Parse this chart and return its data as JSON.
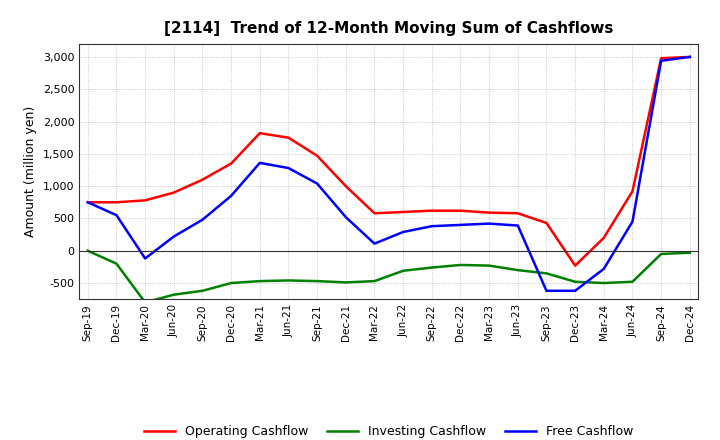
{
  "title": "[2114]  Trend of 12-Month Moving Sum of Cashflows",
  "ylabel": "Amount (million yen)",
  "background_color": "#ffffff",
  "grid_color": "#aaaaaa",
  "ylim": [
    -750,
    3200
  ],
  "yticks": [
    -500,
    0,
    500,
    1000,
    1500,
    2000,
    2500,
    3000
  ],
  "x_labels": [
    "Sep-19",
    "Dec-19",
    "Mar-20",
    "Jun-20",
    "Sep-20",
    "Dec-20",
    "Mar-21",
    "Jun-21",
    "Sep-21",
    "Dec-21",
    "Mar-22",
    "Jun-22",
    "Sep-22",
    "Dec-22",
    "Mar-23",
    "Jun-23",
    "Sep-23",
    "Dec-23",
    "Mar-24",
    "Jun-24",
    "Sep-24",
    "Dec-24"
  ],
  "operating": [
    750,
    750,
    780,
    900,
    1100,
    1350,
    1820,
    1750,
    1470,
    1000,
    580,
    600,
    620,
    620,
    590,
    580,
    430,
    -230,
    200,
    920,
    2980,
    3000
  ],
  "investing": [
    0,
    -200,
    -800,
    -680,
    -620,
    -500,
    -470,
    -460,
    -470,
    -490,
    -470,
    -310,
    -260,
    -220,
    -230,
    -300,
    -350,
    -480,
    -500,
    -480,
    -50,
    -30
  ],
  "free": [
    750,
    550,
    -120,
    220,
    480,
    850,
    1360,
    1280,
    1040,
    520,
    110,
    290,
    380,
    400,
    420,
    390,
    -620,
    -620,
    -280,
    450,
    2940,
    3000
  ],
  "operating_color": "#ff0000",
  "investing_color": "#008000",
  "free_color": "#0000ff",
  "line_width": 1.8
}
